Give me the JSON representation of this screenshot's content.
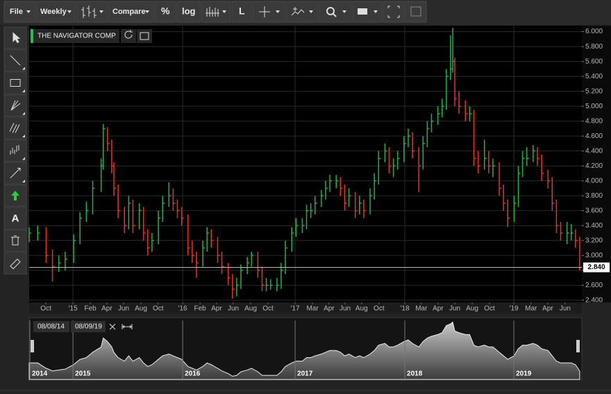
{
  "toolbar": {
    "file": "File",
    "interval": "Weekly",
    "compare": "Compare",
    "percent": "%",
    "log": "log",
    "line": "L"
  },
  "tools": {
    "text_tool": "A"
  },
  "chart_data": {
    "type": "ohlc",
    "title": "THE NAVIGATOR COMP",
    "up_color": "#22b14c",
    "down_color": "#e8332a",
    "grid": true,
    "xlim": [
      0,
      261
    ],
    "ylim": [
      2.37,
      6.08
    ],
    "x": [
      0,
      4,
      8,
      11,
      14,
      17,
      21,
      24,
      27,
      30,
      34,
      35,
      37,
      39,
      40,
      42,
      45,
      47,
      49,
      52,
      54,
      56,
      58,
      61,
      63,
      66,
      68,
      70,
      72,
      75,
      77,
      79,
      82,
      84,
      86,
      89,
      91,
      94,
      96,
      98,
      100,
      103,
      105,
      108,
      110,
      112,
      114,
      117,
      119,
      121,
      124,
      126,
      129,
      131,
      133,
      135,
      138,
      140,
      142,
      145,
      147,
      149,
      151,
      154,
      156,
      158,
      161,
      163,
      165,
      168,
      170,
      172,
      174,
      177,
      179,
      181,
      184,
      186,
      188,
      190,
      193,
      195,
      197,
      199,
      200,
      201,
      203,
      206,
      208,
      210,
      212,
      215,
      217,
      219,
      222,
      224,
      226,
      229,
      231,
      233,
      235,
      238,
      240,
      242,
      245,
      247,
      249,
      251,
      254,
      256,
      258,
      260
    ],
    "high": [
      3.38,
      3.4,
      3.38,
      3.08,
      3.0,
      3.05,
      3.28,
      3.58,
      3.72,
      4.0,
      4.3,
      4.76,
      4.72,
      4.55,
      4.25,
      3.95,
      3.65,
      3.8,
      3.75,
      3.7,
      3.65,
      3.35,
      3.3,
      3.6,
      3.8,
      3.98,
      3.9,
      3.75,
      3.65,
      3.55,
      3.2,
      3.05,
      3.2,
      3.38,
      3.35,
      3.25,
      3.05,
      2.9,
      2.75,
      2.7,
      2.88,
      2.98,
      3.05,
      3.05,
      2.85,
      2.7,
      2.68,
      2.7,
      2.9,
      3.2,
      3.38,
      3.5,
      3.5,
      3.68,
      3.7,
      3.8,
      3.88,
      4.0,
      4.08,
      4.08,
      4.05,
      3.95,
      3.9,
      3.85,
      3.8,
      3.75,
      3.9,
      4.1,
      4.4,
      4.5,
      4.45,
      4.3,
      4.4,
      4.6,
      4.7,
      4.65,
      4.45,
      4.6,
      4.8,
      4.9,
      5.0,
      5.1,
      5.5,
      5.95,
      6.05,
      5.65,
      5.2,
      5.08,
      5.0,
      4.95,
      4.4,
      4.55,
      4.4,
      4.3,
      4.25,
      3.95,
      3.75,
      3.8,
      4.2,
      4.4,
      4.45,
      4.48,
      4.45,
      4.35,
      4.15,
      4.05,
      3.75,
      3.45,
      3.45,
      3.42,
      3.35,
      3.25
    ],
    "low": [
      3.18,
      3.2,
      2.9,
      2.65,
      2.78,
      2.8,
      2.9,
      3.15,
      3.45,
      3.55,
      3.85,
      4.15,
      4.4,
      4.1,
      3.8,
      3.5,
      3.3,
      3.35,
      3.3,
      3.35,
      3.2,
      3.0,
      3.05,
      3.15,
      3.45,
      3.65,
      3.6,
      3.5,
      3.4,
      3.0,
      2.9,
      2.7,
      2.85,
      3.05,
      3.1,
      2.9,
      2.75,
      2.6,
      2.42,
      2.45,
      2.55,
      2.75,
      2.85,
      2.7,
      2.52,
      2.52,
      2.54,
      2.52,
      2.55,
      2.75,
      3.05,
      3.25,
      3.3,
      3.35,
      3.5,
      3.55,
      3.65,
      3.75,
      3.85,
      3.9,
      3.8,
      3.6,
      3.65,
      3.5,
      3.55,
      3.5,
      3.55,
      3.75,
      3.95,
      4.25,
      4.1,
      4.05,
      4.15,
      4.25,
      4.45,
      4.3,
      3.85,
      4.15,
      4.45,
      4.65,
      4.75,
      4.85,
      4.95,
      5.35,
      5.45,
      5.0,
      4.9,
      4.8,
      4.8,
      4.2,
      4.1,
      4.15,
      4.1,
      4.05,
      3.8,
      3.6,
      3.38,
      3.45,
      3.65,
      4.05,
      4.2,
      4.25,
      4.2,
      4.0,
      3.9,
      3.6,
      3.3,
      3.2,
      3.15,
      3.2,
      3.1,
      2.8
    ],
    "close": [
      3.3,
      3.3,
      3.0,
      2.85,
      2.9,
      2.95,
      3.2,
      3.5,
      3.6,
      3.9,
      4.2,
      4.7,
      4.5,
      4.2,
      3.9,
      3.6,
      3.4,
      3.7,
      3.4,
      3.6,
      3.3,
      3.1,
      3.2,
      3.5,
      3.7,
      3.8,
      3.7,
      3.6,
      3.5,
      3.1,
      3.0,
      2.9,
      3.1,
      3.3,
      3.2,
      3.0,
      2.85,
      2.7,
      2.55,
      2.6,
      2.8,
      2.9,
      3.0,
      2.8,
      2.6,
      2.6,
      2.6,
      2.6,
      2.8,
      3.1,
      3.3,
      3.4,
      3.4,
      3.6,
      3.6,
      3.7,
      3.8,
      3.9,
      4.0,
      4.0,
      3.9,
      3.7,
      3.8,
      3.6,
      3.7,
      3.6,
      3.8,
      4.0,
      4.3,
      4.4,
      4.2,
      4.2,
      4.3,
      4.5,
      4.6,
      4.4,
      4.2,
      4.5,
      4.7,
      4.8,
      4.9,
      5.0,
      5.4,
      5.5,
      5.6,
      5.1,
      5.0,
      4.9,
      4.9,
      4.3,
      4.2,
      4.3,
      4.2,
      4.2,
      3.9,
      3.7,
      3.5,
      3.7,
      4.1,
      4.3,
      4.3,
      4.4,
      4.3,
      4.1,
      4.0,
      3.7,
      3.4,
      3.3,
      3.3,
      3.3,
      3.2,
      2.84
    ],
    "xticks": [
      {
        "value": 7.9,
        "label": "Oct"
      },
      {
        "value": 20.7,
        "label": "'15"
      },
      {
        "value": 28.9,
        "label": "Feb"
      },
      {
        "value": 36.7,
        "label": "Apr"
      },
      {
        "value": 44.6,
        "label": "Jun"
      },
      {
        "value": 52.8,
        "label": "Aug"
      },
      {
        "value": 60.9,
        "label": "Oct"
      },
      {
        "value": 72.5,
        "label": "'16"
      },
      {
        "value": 80.7,
        "label": "Feb"
      },
      {
        "value": 88.5,
        "label": "Apr"
      },
      {
        "value": 96.4,
        "label": "Jun"
      },
      {
        "value": 104.6,
        "label": "Aug"
      },
      {
        "value": 112.8,
        "label": "Oct"
      },
      {
        "value": 125.6,
        "label": "'17"
      },
      {
        "value": 133.8,
        "label": "Mar"
      },
      {
        "value": 141.6,
        "label": "Apr"
      },
      {
        "value": 149.2,
        "label": "Jun"
      },
      {
        "value": 157,
        "label": "Aug"
      },
      {
        "value": 165.2,
        "label": "Oct"
      },
      {
        "value": 177.4,
        "label": "'18"
      },
      {
        "value": 185.2,
        "label": "Mar"
      },
      {
        "value": 193.1,
        "label": "Apr"
      },
      {
        "value": 201,
        "label": "Jun"
      },
      {
        "value": 209.2,
        "label": "Aug"
      },
      {
        "value": 217.4,
        "label": "Oct"
      },
      {
        "value": 228.9,
        "label": "'19"
      },
      {
        "value": 237,
        "label": "Mar"
      },
      {
        "value": 244.9,
        "label": "Apr"
      },
      {
        "value": 253.1,
        "label": "Jun"
      }
    ],
    "yticks": [
      {
        "value": 2.4,
        "label": "2.400"
      },
      {
        "value": 2.6,
        "label": "2.600"
      },
      {
        "value": 2.8,
        "label": "2.800"
      },
      {
        "value": 3.0,
        "label": "3.000"
      },
      {
        "value": 3.2,
        "label": "3.200"
      },
      {
        "value": 3.4,
        "label": "3.400"
      },
      {
        "value": 3.6,
        "label": "3.600"
      },
      {
        "value": 3.8,
        "label": "3.800"
      },
      {
        "value": 4.0,
        "label": "4.000"
      },
      {
        "value": 4.2,
        "label": "4.200"
      },
      {
        "value": 4.4,
        "label": "4.400"
      },
      {
        "value": 4.6,
        "label": "4.600"
      },
      {
        "value": 4.8,
        "label": "4.800"
      },
      {
        "value": 5.0,
        "label": "5.000"
      },
      {
        "value": 5.2,
        "label": "5.200"
      },
      {
        "value": 5.4,
        "label": "5.400"
      },
      {
        "value": 5.6,
        "label": "5.600"
      },
      {
        "value": 5.8,
        "label": "5.800"
      },
      {
        "value": 6.0,
        "label": "6.000"
      }
    ],
    "last_price": {
      "value": 2.84,
      "label": "2.840"
    },
    "navigator": {
      "from": "08/08/14",
      "to": "08/09/19",
      "years": [
        {
          "value": 0,
          "label": "2014"
        },
        {
          "value": 20.7,
          "label": "2015"
        },
        {
          "value": 72.5,
          "label": "2016"
        },
        {
          "value": 125.6,
          "label": "2017"
        },
        {
          "value": 177.4,
          "label": "2018"
        },
        {
          "value": 228.9,
          "label": "2019"
        }
      ]
    }
  }
}
